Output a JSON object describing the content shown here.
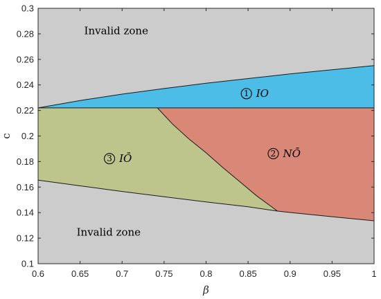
{
  "chart_data": {
    "type": "area",
    "xlabel": "β",
    "ylabel": "c",
    "xlim": [
      0.6,
      1.0
    ],
    "ylim": [
      0.1,
      0.3
    ],
    "xticks": [
      "0.6",
      "0.65",
      "0.7",
      "0.75",
      "0.8",
      "0.85",
      "0.9",
      "0.95",
      "1"
    ],
    "yticks": [
      "0.1",
      "0.12",
      "0.14",
      "0.16",
      "0.18",
      "0.2",
      "0.22",
      "0.24",
      "0.26",
      "0.28",
      "0.3"
    ],
    "background_color": "#cccccc",
    "grid": false,
    "boundaries": {
      "upper": [
        {
          "x": 0.6,
          "y": 0.222
        },
        {
          "x": 0.65,
          "y": 0.2278
        },
        {
          "x": 0.7,
          "y": 0.2328
        },
        {
          "x": 0.75,
          "y": 0.2372
        },
        {
          "x": 0.8,
          "y": 0.2413
        },
        {
          "x": 0.85,
          "y": 0.245
        },
        {
          "x": 0.9,
          "y": 0.2486
        },
        {
          "x": 0.95,
          "y": 0.2519
        },
        {
          "x": 1.0,
          "y": 0.2551
        }
      ],
      "middle": [
        {
          "x": 0.6,
          "y": 0.222
        },
        {
          "x": 1.0,
          "y": 0.222
        }
      ],
      "lower": [
        {
          "x": 0.6,
          "y": 0.1655
        },
        {
          "x": 0.65,
          "y": 0.161
        },
        {
          "x": 0.7,
          "y": 0.1566
        },
        {
          "x": 0.75,
          "y": 0.1524
        },
        {
          "x": 0.8,
          "y": 0.1484
        },
        {
          "x": 0.85,
          "y": 0.1446
        },
        {
          "x": 0.885,
          "y": 0.1412
        },
        {
          "x": 0.9,
          "y": 0.1401
        },
        {
          "x": 0.95,
          "y": 0.1368
        },
        {
          "x": 1.0,
          "y": 0.1336
        }
      ],
      "divider": [
        {
          "x": 0.742,
          "y": 0.222
        },
        {
          "x": 0.76,
          "y": 0.2094
        },
        {
          "x": 0.78,
          "y": 0.1974
        },
        {
          "x": 0.8,
          "y": 0.1869
        },
        {
          "x": 0.82,
          "y": 0.1753
        },
        {
          "x": 0.84,
          "y": 0.1643
        },
        {
          "x": 0.86,
          "y": 0.1532
        },
        {
          "x": 0.885,
          "y": 0.1412
        }
      ]
    },
    "regions": [
      {
        "name": "IO",
        "number": "1",
        "color": "#4cbde6",
        "label_x": 0.848,
        "label_y": 0.2332
      },
      {
        "name": "NŌ",
        "number": "2",
        "color": "#d98878",
        "label_x": 0.88,
        "label_y": 0.1862
      },
      {
        "name": "IŌ",
        "number": "3",
        "color": "#bdc58d",
        "label_x": 0.685,
        "label_y": 0.1823
      }
    ],
    "annotations": [
      {
        "text": "Invalid zone",
        "x": 0.693,
        "y": 0.2825
      },
      {
        "text": "Invalid zone",
        "x": 0.684,
        "y": 0.1247
      }
    ]
  }
}
